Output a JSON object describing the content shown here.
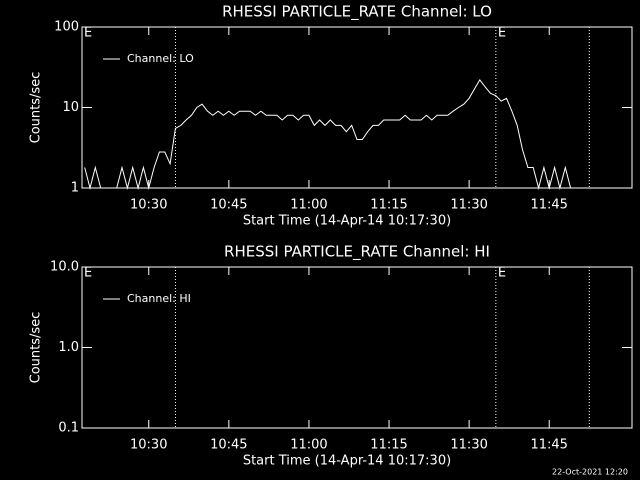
{
  "chart_data": [
    {
      "type": "line",
      "title": "RHESSI PARTICLE_RATE Channel: LO",
      "xlabel": "Start Time (14-Apr-14 10:17:30)",
      "ylabel": "Counts/sec",
      "x": [
        "10:18",
        "10:19",
        "10:20",
        "10:21",
        "10:22",
        "10:23",
        "10:24",
        "10:25",
        "10:26",
        "10:27",
        "10:28",
        "10:29",
        "10:30",
        "10:31",
        "10:32",
        "10:33",
        "10:34",
        "10:35",
        "10:36",
        "10:37",
        "10:38",
        "10:39",
        "10:40",
        "10:41",
        "10:42",
        "10:43",
        "10:44",
        "10:45",
        "10:46",
        "10:47",
        "10:48",
        "10:49",
        "10:50",
        "10:51",
        "10:52",
        "10:53",
        "10:54",
        "10:55",
        "10:56",
        "10:57",
        "10:58",
        "10:59",
        "11:00",
        "11:01",
        "11:02",
        "11:03",
        "11:04",
        "11:05",
        "11:06",
        "11:07",
        "11:08",
        "11:09",
        "11:10",
        "11:11",
        "11:12",
        "11:13",
        "11:14",
        "11:15",
        "11:16",
        "11:17",
        "11:18",
        "11:19",
        "11:20",
        "11:21",
        "11:22",
        "11:23",
        "11:24",
        "11:25",
        "11:26",
        "11:27",
        "11:28",
        "11:29",
        "11:30",
        "11:31",
        "11:32",
        "11:33",
        "11:34",
        "11:35",
        "11:36",
        "11:37",
        "11:38",
        "11:39",
        "11:40",
        "11:41",
        "11:42",
        "11:43",
        "11:44",
        "11:45",
        "11:46",
        "11:47",
        "11:48",
        "11:49"
      ],
      "series": [
        {
          "name": "Channel: LO",
          "color": "#ffffff",
          "values": [
            1.8,
            1,
            1.8,
            1,
            1,
            1,
            1,
            1.8,
            1,
            1.8,
            1,
            1.8,
            1,
            1.8,
            2.8,
            2.8,
            2,
            5.5,
            6,
            7,
            8,
            10,
            11,
            9,
            8,
            9,
            8,
            9,
            8,
            9,
            9,
            9,
            8,
            9,
            8,
            8,
            8,
            7,
            8,
            8,
            7,
            8,
            8,
            6,
            7,
            6,
            7,
            6,
            6,
            5,
            6,
            4,
            4,
            5,
            6,
            6,
            7,
            7,
            7,
            7,
            8,
            7,
            7,
            7,
            8,
            7,
            8,
            8,
            8,
            9,
            10,
            11,
            13,
            17,
            22,
            18,
            15,
            14,
            12,
            13,
            9,
            6,
            3,
            1.8,
            1.8,
            1,
            1.8,
            1,
            1.8,
            1,
            1.8,
            1
          ]
        }
      ],
      "xlim": [
        "10:17:30",
        "12:00:30"
      ],
      "xticks": [
        "10:30",
        "10:45",
        "11:00",
        "11:15",
        "11:30",
        "11:45"
      ],
      "ylim": [
        1,
        100
      ],
      "yticks": [
        1,
        10,
        100
      ],
      "log_y": true,
      "legend": "upper left",
      "vlines": [
        "10:35",
        "11:35",
        "11:52:30"
      ],
      "annotations": [
        {
          "text": "E",
          "x": "10:17:30"
        },
        {
          "text": "E",
          "x": "11:35"
        }
      ]
    },
    {
      "type": "line",
      "title": "RHESSI PARTICLE_RATE Channel: HI",
      "xlabel": "Start Time (14-Apr-14 10:17:30)",
      "ylabel": "Counts/sec",
      "x": [],
      "series": [
        {
          "name": "Channel: HI",
          "color": "#ffffff",
          "values": []
        }
      ],
      "xlim": [
        "10:17:30",
        "12:00:30"
      ],
      "xticks": [
        "10:30",
        "10:45",
        "11:00",
        "11:15",
        "11:30",
        "11:45"
      ],
      "ylim": [
        0.1,
        10
      ],
      "yticks": [
        {
          "value": 0.1,
          "label": "0.1"
        },
        {
          "value": 1,
          "label": "1.0"
        },
        {
          "value": 10,
          "label": "10.0"
        }
      ],
      "log_y": true,
      "legend": "upper left",
      "vlines": [
        "10:35",
        "11:35",
        "11:52:30"
      ],
      "annotations": [
        {
          "text": "E",
          "x": "10:17:30"
        },
        {
          "text": "E",
          "x": "11:35"
        }
      ]
    }
  ],
  "footer": "22-Oct-2021 12:20"
}
